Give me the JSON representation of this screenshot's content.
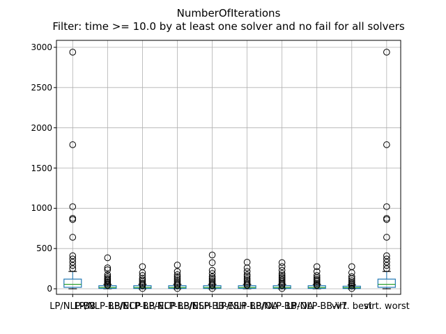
{
  "title": "NumberOfIterations",
  "subtitle": "Filter: time >= 10.0 by at least one solver and no fail for all solvers",
  "chart_data": {
    "type": "boxplot",
    "title": "NumberOfIterations",
    "subtitle": "Filter: time >= 10.0 by at least one solver and no fail for all solvers",
    "xlabel": "",
    "ylabel": "",
    "ylim": [
      -70,
      3090
    ],
    "y_ticks": [
      0,
      500,
      1000,
      1500,
      2000,
      2500,
      3000
    ],
    "grid": true,
    "legend": "none",
    "categories": [
      "LP/NLP-BB",
      "LP/NLP-BB/ECP",
      "LP/NLP-BB-ECP",
      "LP/NLP-BB/ESH",
      "LP/NLP-BB-ESH",
      "LP/NLP-BB/OA",
      "LP/NLP-BB-OA",
      "LP/NLP-BB-V7",
      "virt. best",
      "virt. worst"
    ],
    "series": [
      {
        "name": "LP/NLP-BB",
        "whislo": 0,
        "q1": 18,
        "med": 55,
        "q3": 120,
        "whishi": 215,
        "fliers": [
          250,
          290,
          330,
          370,
          410,
          640,
          860,
          875,
          1020,
          1790,
          2940
        ]
      },
      {
        "name": "LP/NLP-BB/ECP",
        "whislo": 0,
        "q1": 4,
        "med": 16,
        "q3": 38,
        "whishi": 55,
        "fliers": [
          40,
          55,
          70,
          85,
          100,
          115,
          130,
          150,
          175,
          235,
          260,
          385
        ]
      },
      {
        "name": "LP/NLP-BB-ECP",
        "whislo": 0,
        "q1": 4,
        "med": 16,
        "q3": 38,
        "whishi": 55,
        "fliers": [
          3,
          40,
          55,
          70,
          90,
          110,
          130,
          165,
          200,
          275
        ]
      },
      {
        "name": "LP/NLP-BB/ESH",
        "whislo": 0,
        "q1": 4,
        "med": 16,
        "q3": 38,
        "whishi": 55,
        "fliers": [
          3,
          40,
          55,
          70,
          90,
          110,
          130,
          150,
          175,
          215,
          295
        ]
      },
      {
        "name": "LP/NLP-BB-ESH",
        "whislo": 0,
        "q1": 4,
        "med": 16,
        "q3": 38,
        "whishi": 55,
        "fliers": [
          3,
          40,
          55,
          70,
          90,
          110,
          130,
          150,
          190,
          230,
          325,
          420
        ]
      },
      {
        "name": "LP/NLP-BB/OA",
        "whislo": 0,
        "q1": 4,
        "med": 16,
        "q3": 38,
        "whishi": 55,
        "fliers": [
          40,
          55,
          70,
          90,
          110,
          130,
          155,
          175,
          215,
          260,
          330
        ]
      },
      {
        "name": "LP/NLP-BB-OA",
        "whislo": 0,
        "q1": 4,
        "med": 16,
        "q3": 38,
        "whishi": 55,
        "fliers": [
          3,
          40,
          55,
          70,
          90,
          110,
          130,
          145,
          165,
          190,
          230,
          275,
          325
        ]
      },
      {
        "name": "LP/NLP-BB-V7",
        "whislo": 0,
        "q1": 4,
        "med": 16,
        "q3": 38,
        "whishi": 55,
        "fliers": [
          40,
          55,
          70,
          90,
          105,
          120,
          140,
          165,
          215,
          275
        ]
      },
      {
        "name": "virt. best",
        "whislo": 0,
        "q1": 3,
        "med": 14,
        "q3": 32,
        "whishi": 48,
        "fliers": [
          3,
          35,
          50,
          65,
          80,
          100,
          125,
          150,
          200,
          275
        ]
      },
      {
        "name": "virt. worst",
        "whislo": 0,
        "q1": 18,
        "med": 55,
        "q3": 120,
        "whishi": 215,
        "fliers": [
          250,
          290,
          330,
          370,
          410,
          640,
          860,
          875,
          1020,
          1790,
          2940
        ]
      }
    ],
    "colors": {
      "box": "#1f77b4",
      "median": "#2ca02c",
      "whisker": "#1f77b4",
      "cap": "#000000",
      "flier": "#000000",
      "grid": "#b0b0b0",
      "frame": "#000000",
      "background": "#ffffff"
    }
  }
}
